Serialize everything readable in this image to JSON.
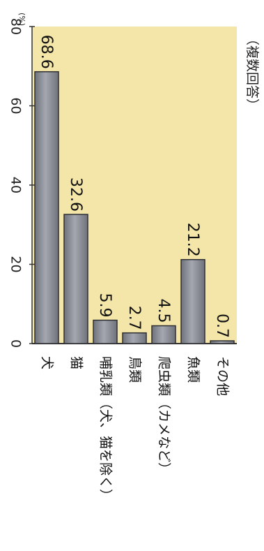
{
  "chart_data": {
    "type": "bar",
    "orientation": "horizontal (bars point downward on the page; rotated chart)",
    "categories": [
      "犬",
      "猫",
      "哺乳類（犬、猫を除く）",
      "鳥類",
      "爬虫類（カメなど）",
      "魚類",
      "その他"
    ],
    "values": [
      68.6,
      32.6,
      5.9,
      2.7,
      4.5,
      21.2,
      0.7
    ],
    "value_labels": [
      "68.6",
      "32.6",
      "5.9",
      "2.7",
      "4.5",
      "21.2",
      "0.7"
    ],
    "ticks": [
      "0",
      "20",
      "40",
      "60",
      "80"
    ],
    "unit": "(%)",
    "note": "（複数回答）",
    "xlim": [
      0,
      80
    ],
    "grid": false,
    "bar_color": "#8a8d96",
    "plot_background": "#f4e6a8"
  }
}
